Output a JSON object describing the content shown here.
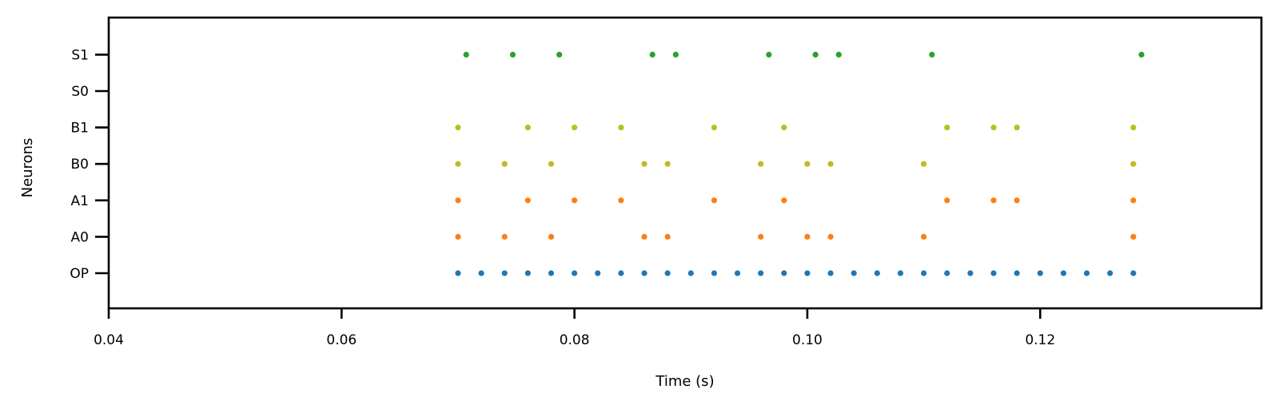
{
  "chart_data": {
    "type": "scatter",
    "title": "",
    "xlabel": "Time (s)",
    "ylabel": "Neurons",
    "xlim": [
      0.04,
      0.139
    ],
    "x_ticks": [
      "0.04",
      "0.06",
      "0.08",
      "0.10",
      "0.12"
    ],
    "x_tick_values": [
      0.04,
      0.06,
      0.08,
      0.1,
      0.12
    ],
    "y_categories": [
      "OP",
      "A0",
      "A1",
      "B0",
      "B1",
      "S0",
      "S1"
    ],
    "grid": false,
    "legend": "none",
    "series": [
      {
        "row": "OP",
        "color": "#1f77b4",
        "x": [
          0.07,
          0.072,
          0.074,
          0.076,
          0.078,
          0.08,
          0.082,
          0.084,
          0.086,
          0.088,
          0.09,
          0.092,
          0.094,
          0.096,
          0.098,
          0.1,
          0.102,
          0.104,
          0.106,
          0.108,
          0.11,
          0.112,
          0.114,
          0.116,
          0.118,
          0.12,
          0.122,
          0.124,
          0.126,
          0.128
        ]
      },
      {
        "row": "A0",
        "color": "#ff7f0e",
        "x": [
          0.07,
          0.074,
          0.078,
          0.086,
          0.088,
          0.096,
          0.1,
          0.102,
          0.11,
          0.128
        ]
      },
      {
        "row": "A1",
        "color": "#ff7f0e",
        "x": [
          0.07,
          0.076,
          0.08,
          0.084,
          0.092,
          0.098,
          0.112,
          0.116,
          0.118,
          0.128
        ]
      },
      {
        "row": "B0",
        "color": "#bcbd22",
        "x": [
          0.07,
          0.074,
          0.078,
          0.086,
          0.088,
          0.096,
          0.1,
          0.102,
          0.11,
          0.128
        ]
      },
      {
        "row": "B1",
        "color": "#bcbd22",
        "x": [
          0.07,
          0.076,
          0.08,
          0.084,
          0.092,
          0.098,
          0.112,
          0.116,
          0.118,
          0.128
        ]
      },
      {
        "row": "S0",
        "color": "#2ca02c",
        "x": []
      },
      {
        "row": "S1",
        "color": "#2ca02c",
        "x": [
          0.0707,
          0.0747,
          0.0787,
          0.0867,
          0.0887,
          0.0967,
          0.1007,
          0.1027,
          0.1107,
          0.1287
        ]
      }
    ]
  }
}
